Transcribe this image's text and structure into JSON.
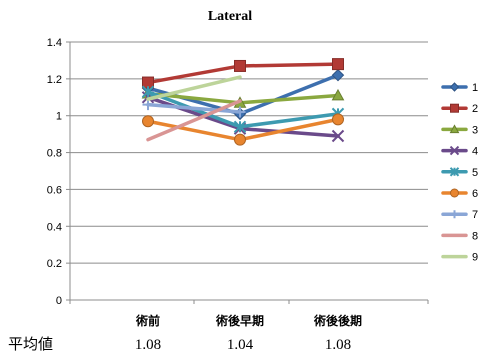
{
  "chart_data": {
    "type": "line",
    "title": "Lateral",
    "categories": [
      "術前",
      "術後早期",
      "術後後期"
    ],
    "ylim": [
      0,
      1.4
    ],
    "yticks": [
      "0",
      "0.2",
      "0.4",
      "0.6",
      "0.8",
      "1",
      "1.2",
      "1.4"
    ],
    "grid": true,
    "legend_position": "right",
    "series": [
      {
        "name": "1",
        "color": "#3d6fae",
        "marker": "diamond",
        "values": [
          1.15,
          1.01,
          1.22
        ]
      },
      {
        "name": "2",
        "color": "#b23a35",
        "marker": "square",
        "values": [
          1.18,
          1.27,
          1.28
        ]
      },
      {
        "name": "3",
        "color": "#8aa83f",
        "marker": "triangle",
        "values": [
          1.12,
          1.07,
          1.11
        ]
      },
      {
        "name": "4",
        "color": "#6a4a8a",
        "marker": "x",
        "values": [
          1.1,
          0.93,
          0.89
        ]
      },
      {
        "name": "5",
        "color": "#3d9ab0",
        "marker": "star",
        "values": [
          1.13,
          0.94,
          1.01
        ]
      },
      {
        "name": "6",
        "color": "#e8852f",
        "marker": "circle",
        "values": [
          0.97,
          0.87,
          0.98
        ]
      },
      {
        "name": "7",
        "color": "#8aa6d6",
        "marker": "plus",
        "values": [
          1.06,
          1.02,
          null
        ]
      },
      {
        "name": "8",
        "color": "#d99594",
        "marker": "dash",
        "values": [
          0.87,
          1.08,
          null
        ]
      },
      {
        "name": "9",
        "color": "#bdd49a",
        "marker": "dash",
        "values": [
          1.09,
          1.21,
          null
        ]
      }
    ]
  },
  "averages": {
    "label": "平均値",
    "values": [
      "1.08",
      "1.04",
      "1.08"
    ]
  }
}
